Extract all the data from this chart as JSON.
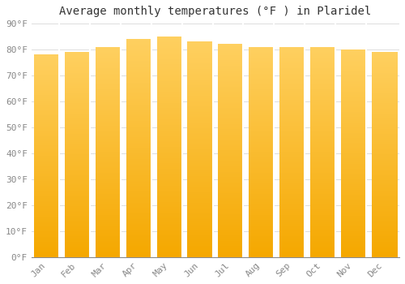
{
  "title": "Average monthly temperatures (°F ) in Plaridel",
  "months": [
    "Jan",
    "Feb",
    "Mar",
    "Apr",
    "May",
    "Jun",
    "Jul",
    "Aug",
    "Sep",
    "Oct",
    "Nov",
    "Dec"
  ],
  "values": [
    78,
    79,
    81,
    84,
    85,
    83,
    82,
    81,
    81,
    81,
    80,
    79
  ],
  "bar_color_light": "#FFD060",
  "bar_color_dark": "#F5A800",
  "background_color": "#FFFFFF",
  "grid_color": "#DDDDDD",
  "ylim": [
    0,
    90
  ],
  "yticks": [
    0,
    10,
    20,
    30,
    40,
    50,
    60,
    70,
    80,
    90
  ],
  "title_fontsize": 10,
  "tick_fontsize": 8
}
